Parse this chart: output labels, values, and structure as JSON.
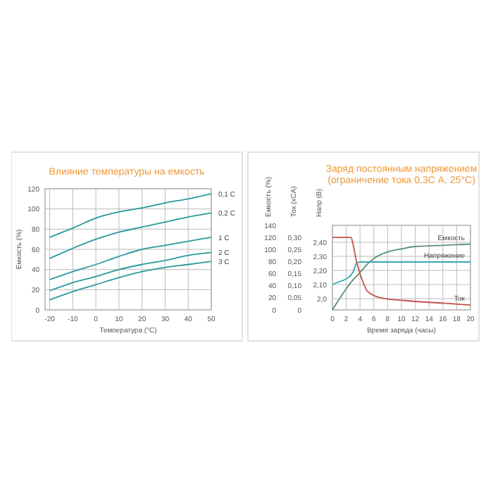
{
  "chart_data": [
    {
      "type": "line",
      "title": "Влияние температуры на емкость",
      "xlabel": "Температура (°C)",
      "ylabel": "Емкость (%)",
      "x": [
        -20,
        -10,
        0,
        10,
        20,
        30,
        40,
        50
      ],
      "xlim": [
        -22,
        50
      ],
      "xticks": [
        -20,
        -10,
        0,
        10,
        20,
        30,
        40,
        50
      ],
      "ylim": [
        0,
        120
      ],
      "yticks": [
        0,
        20,
        40,
        60,
        80,
        100,
        120
      ],
      "grid": true,
      "series": [
        {
          "name": "0,1 C",
          "color": "#2a9a9c",
          "values": [
            72,
            81,
            91,
            97,
            101,
            106,
            110,
            115
          ]
        },
        {
          "name": "0,2 C",
          "color": "#2a9a9c",
          "values": [
            51,
            61,
            70,
            77,
            82,
            87,
            92,
            96
          ]
        },
        {
          "name": "1 C",
          "color": "#2a9a9c",
          "values": [
            30,
            38,
            45,
            53,
            60,
            64,
            68,
            72
          ]
        },
        {
          "name": "2 C",
          "color": "#2a9a9c",
          "values": [
            19,
            27,
            33,
            40,
            45,
            49,
            54,
            57
          ]
        },
        {
          "name": "3 C",
          "color": "#2a9a9c",
          "values": [
            10,
            18,
            25,
            32,
            38,
            42,
            45,
            48
          ]
        }
      ]
    },
    {
      "type": "line",
      "title": "Заряд постоянным напряжением (ограничение тока 0,3С А, 25°C)",
      "xlabel": "Время заряда (часы)",
      "ylabel": "Напр (В)",
      "y2label": "Ток (xCA)",
      "y3label": "Емкость (%)",
      "xlim": [
        0,
        20
      ],
      "xticks": [
        0,
        2,
        4,
        6,
        8,
        10,
        12,
        14,
        16,
        18,
        20
      ],
      "y3lim": [
        0,
        140
      ],
      "y3ticks": [
        0,
        20,
        40,
        60,
        80,
        100,
        120,
        140
      ],
      "y2lim": [
        0,
        0.35
      ],
      "y2ticks": [
        {
          "value": 0,
          "label": "0"
        },
        {
          "value": 0.05,
          "label": "0,05"
        },
        {
          "value": 0.1,
          "label": "0,10"
        },
        {
          "value": 0.15,
          "label": "0,15"
        },
        {
          "value": 0.2,
          "label": "0,20"
        },
        {
          "value": 0.25,
          "label": "0,25"
        },
        {
          "value": 0.3,
          "label": "0,30"
        }
      ],
      "ylim": [
        1.92,
        2.52
      ],
      "yticks": [
        {
          "value": 2.0,
          "label": "2,0"
        },
        {
          "value": 2.1,
          "label": "2,10"
        },
        {
          "value": 2.2,
          "label": "2,20"
        },
        {
          "value": 2.3,
          "label": "2,30"
        },
        {
          "value": 2.4,
          "label": "2,40"
        }
      ],
      "grid": true,
      "series": [
        {
          "name": "Емкость",
          "color": "#5c8f72",
          "axis": "y3",
          "x": [
            0,
            1,
            2,
            3,
            4,
            5,
            6,
            8,
            10,
            12,
            14,
            16,
            18,
            20
          ],
          "values": [
            0,
            18,
            35,
            50,
            62,
            75,
            85,
            96,
            101,
            105,
            106,
            107,
            108,
            109
          ]
        },
        {
          "name": "Напряжение",
          "color": "#3aa6b0",
          "x": [
            0,
            1,
            2,
            3,
            3.5,
            4,
            6,
            10,
            15,
            20
          ],
          "values": [
            2.1,
            2.12,
            2.14,
            2.19,
            2.25,
            2.26,
            2.26,
            2.26,
            2.26,
            2.26
          ]
        },
        {
          "name": "Ток",
          "color": "#c0504d",
          "axis": "y2",
          "x": [
            0,
            1,
            2,
            2.7,
            3,
            3.5,
            4,
            5,
            6,
            8,
            10,
            12,
            16,
            20
          ],
          "values": [
            0.3,
            0.3,
            0.3,
            0.3,
            0.27,
            0.2,
            0.15,
            0.08,
            0.06,
            0.045,
            0.04,
            0.035,
            0.028,
            0.02
          ]
        }
      ]
    }
  ]
}
